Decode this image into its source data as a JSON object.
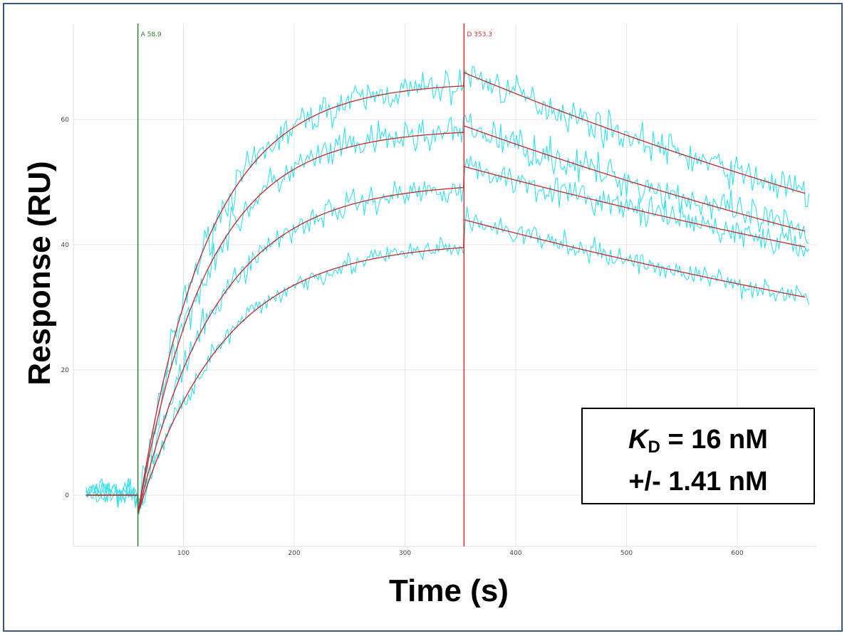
{
  "chart_data": {
    "type": "line",
    "title": "",
    "xlabel": "Time (s)",
    "ylabel": "Response (RU)",
    "xlim": [
      10,
      675
    ],
    "ylim": [
      -8,
      75
    ],
    "x_ticks": [
      100,
      200,
      300,
      400,
      500,
      600
    ],
    "y_ticks": [
      0,
      20,
      40,
      60
    ],
    "grid": true,
    "markers": [
      {
        "label": "A 58.9",
        "x": 58.9,
        "color": "#2e7d32"
      },
      {
        "label": "D 353.3",
        "x": 353.3,
        "color": "#d32f2f"
      }
    ],
    "association_end": 353.3,
    "baseline_start": 12,
    "data_color": "#33e0ee",
    "fit_color": "#c62828",
    "series": [
      {
        "association_max": 66,
        "association_rate": 0.016,
        "dissociation_start": 67.5,
        "dissociation_end_value": 48,
        "noise": 2.3
      },
      {
        "association_max": 58.5,
        "association_rate": 0.016,
        "dissociation_start": 59,
        "dissociation_end_value": 42,
        "noise": 2.4
      },
      {
        "association_max": 50,
        "association_rate": 0.014,
        "dissociation_start": 52.5,
        "dissociation_end_value": 39.5,
        "noise": 2.0
      },
      {
        "association_max": 40.5,
        "association_rate": 0.013,
        "dissociation_start": 44,
        "dissociation_end_value": 31.5,
        "noise": 1.6
      }
    ],
    "annotation": {
      "symbol": "K",
      "subscript": "D",
      "line1_value": " = 16 nM",
      "line2": "+/- 1.41 nM"
    }
  }
}
